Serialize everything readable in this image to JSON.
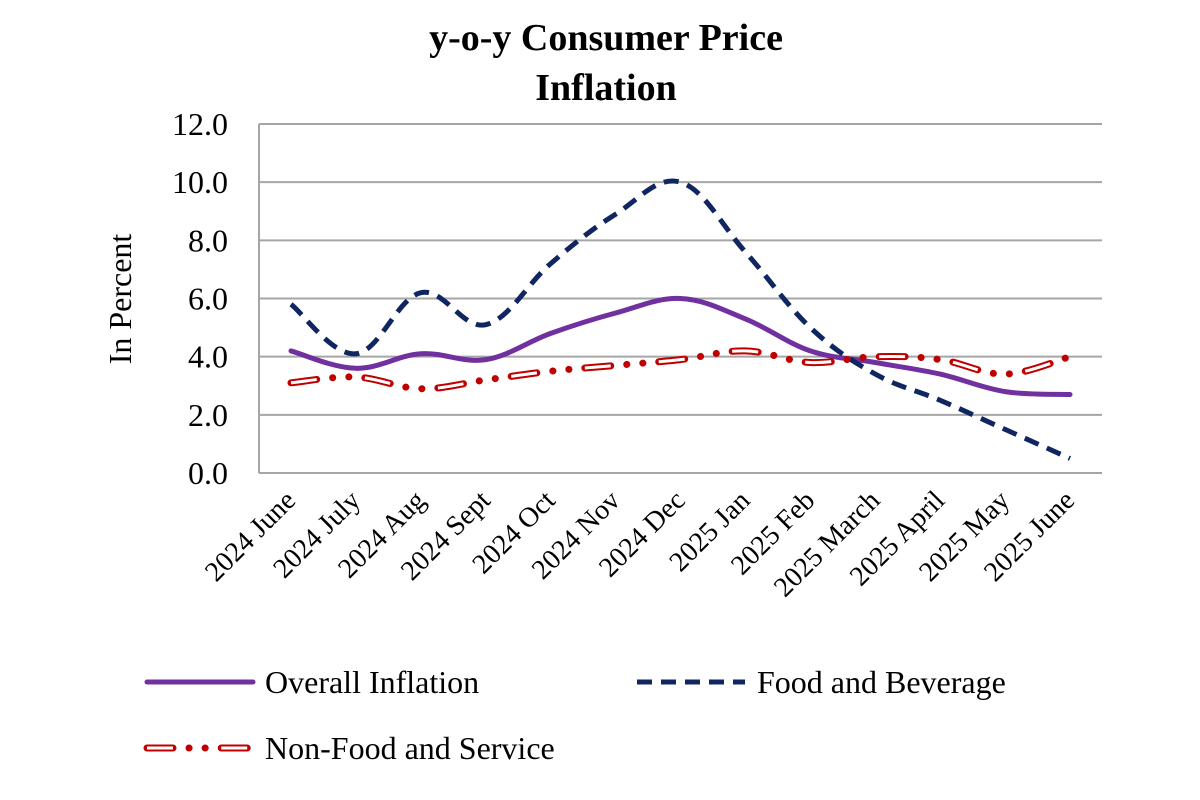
{
  "chart_data": {
    "type": "line",
    "title": "y-o-y Consumer Price Inflation",
    "title_lines": [
      "y-o-y Consumer Price",
      "Inflation"
    ],
    "xlabel": "",
    "ylabel": "In Percent",
    "ylim": [
      0,
      12
    ],
    "yticks": [
      "0.0",
      "2.0",
      "4.0",
      "6.0",
      "8.0",
      "10.0",
      "12.0"
    ],
    "grid": true,
    "legend_position": "bottom",
    "categories": [
      "2024 June",
      "2024 July",
      "2024 Aug",
      "2024 Sept",
      "2024 Oct",
      "2024 Nov",
      "2024 Dec",
      "2025 Jan",
      "2025 Feb",
      "2025 March",
      "2025 April",
      "2025 May",
      "2025 June"
    ],
    "series": [
      {
        "name": "Overall Inflation",
        "style": "solid",
        "color": "#7030A0",
        "values": [
          4.2,
          3.6,
          4.1,
          3.9,
          4.8,
          5.5,
          6.0,
          5.3,
          4.2,
          3.8,
          3.4,
          2.8,
          2.7
        ]
      },
      {
        "name": "Food and Beverage",
        "style": "dashed",
        "color": "#0F2660",
        "values": [
          5.8,
          4.1,
          6.2,
          5.1,
          7.2,
          8.9,
          10.0,
          7.6,
          5.0,
          3.4,
          2.5,
          1.5,
          0.5
        ]
      },
      {
        "name": "Non-Food and Service",
        "style": "double-dotted",
        "color": "#C00000",
        "values": [
          3.1,
          3.3,
          2.9,
          3.2,
          3.5,
          3.7,
          3.9,
          4.2,
          3.8,
          4.0,
          3.9,
          3.4,
          4.0
        ]
      }
    ]
  }
}
